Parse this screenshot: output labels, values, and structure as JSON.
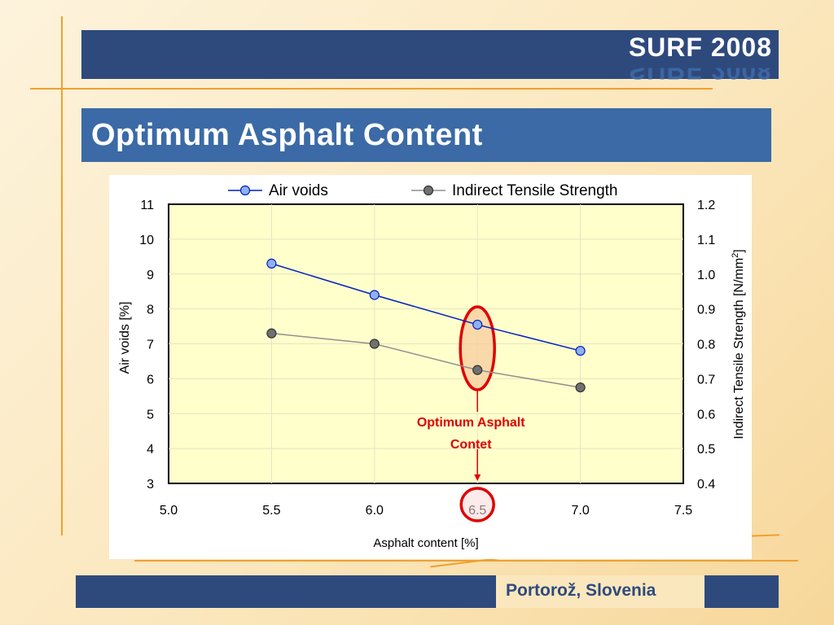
{
  "slide": {
    "conference": "SURF 2008",
    "title": "Optimum Asphalt Content",
    "location": "Portorož, Slovenia"
  },
  "colors": {
    "header_blue": "#2e4a7d",
    "title_blue": "#3b6aa6",
    "plot_bg": "#ffffcc",
    "air_voids": "#0020c0",
    "air_voids_marker": "#8fb0f0",
    "its": "#909090",
    "its_marker": "#707070",
    "highlight": "#e00000"
  },
  "chart_data": {
    "type": "line",
    "xlabel": "Asphalt content [%]",
    "ylabel": "Air voids [%]",
    "y2label": "Indirect Tensile Strength [N/mm",
    "y2label_sup": "2",
    "y2label_end": "]",
    "xlim": [
      5.0,
      7.5
    ],
    "ylim": [
      3,
      11
    ],
    "y2lim": [
      0.4,
      1.2
    ],
    "x_ticks": [
      "5.0",
      "5.5",
      "6.0",
      "6.5",
      "7.0",
      "7.5"
    ],
    "y_ticks": [
      "3",
      "4",
      "5",
      "6",
      "7",
      "8",
      "9",
      "10",
      "11"
    ],
    "y2_ticks": [
      "0.4",
      "0.5",
      "0.6",
      "0.7",
      "0.8",
      "0.9",
      "1.0",
      "1.1",
      "1.2"
    ],
    "grid": true,
    "legend_position": "top",
    "series": [
      {
        "name": "Air voids",
        "axis": "left",
        "x": [
          5.5,
          6.0,
          6.5,
          7.0
        ],
        "values": [
          9.3,
          8.4,
          7.55,
          6.8
        ]
      },
      {
        "name": "Indirect Tensile Strength",
        "axis": "right",
        "x": [
          5.5,
          6.0,
          6.5,
          7.0
        ],
        "values": [
          0.83,
          0.8,
          0.725,
          0.675
        ]
      }
    ],
    "annotation": {
      "text_line1": "Optimum Asphalt",
      "text_line2": "Contet",
      "x": 6.5
    }
  }
}
